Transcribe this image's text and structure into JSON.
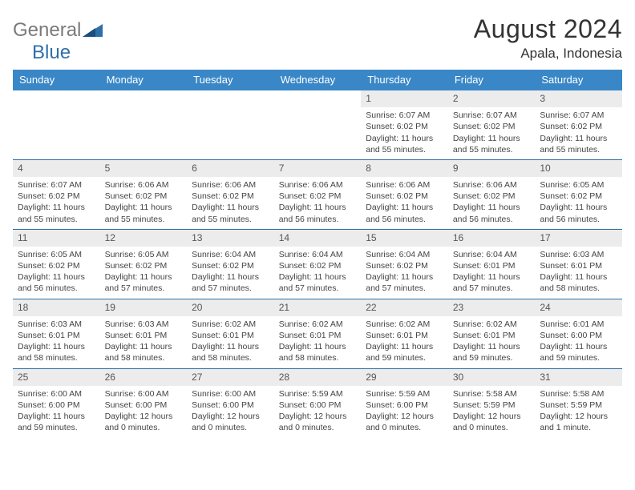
{
  "logo": {
    "text1": "General",
    "text2": "Blue"
  },
  "title": "August 2024",
  "location": "Apala, Indonesia",
  "colors": {
    "header_bg": "#3a87c7",
    "row_border": "#2f6fa8",
    "daynum_bg": "#ececec",
    "logo_blue": "#2f6fa8"
  },
  "day_headers": [
    "Sunday",
    "Monday",
    "Tuesday",
    "Wednesday",
    "Thursday",
    "Friday",
    "Saturday"
  ],
  "weeks": [
    [
      {
        "n": "",
        "lines": []
      },
      {
        "n": "",
        "lines": []
      },
      {
        "n": "",
        "lines": []
      },
      {
        "n": "",
        "lines": []
      },
      {
        "n": "1",
        "lines": [
          "Sunrise: 6:07 AM",
          "Sunset: 6:02 PM",
          "Daylight: 11 hours and 55 minutes."
        ]
      },
      {
        "n": "2",
        "lines": [
          "Sunrise: 6:07 AM",
          "Sunset: 6:02 PM",
          "Daylight: 11 hours and 55 minutes."
        ]
      },
      {
        "n": "3",
        "lines": [
          "Sunrise: 6:07 AM",
          "Sunset: 6:02 PM",
          "Daylight: 11 hours and 55 minutes."
        ]
      }
    ],
    [
      {
        "n": "4",
        "lines": [
          "Sunrise: 6:07 AM",
          "Sunset: 6:02 PM",
          "Daylight: 11 hours and 55 minutes."
        ]
      },
      {
        "n": "5",
        "lines": [
          "Sunrise: 6:06 AM",
          "Sunset: 6:02 PM",
          "Daylight: 11 hours and 55 minutes."
        ]
      },
      {
        "n": "6",
        "lines": [
          "Sunrise: 6:06 AM",
          "Sunset: 6:02 PM",
          "Daylight: 11 hours and 55 minutes."
        ]
      },
      {
        "n": "7",
        "lines": [
          "Sunrise: 6:06 AM",
          "Sunset: 6:02 PM",
          "Daylight: 11 hours and 56 minutes."
        ]
      },
      {
        "n": "8",
        "lines": [
          "Sunrise: 6:06 AM",
          "Sunset: 6:02 PM",
          "Daylight: 11 hours and 56 minutes."
        ]
      },
      {
        "n": "9",
        "lines": [
          "Sunrise: 6:06 AM",
          "Sunset: 6:02 PM",
          "Daylight: 11 hours and 56 minutes."
        ]
      },
      {
        "n": "10",
        "lines": [
          "Sunrise: 6:05 AM",
          "Sunset: 6:02 PM",
          "Daylight: 11 hours and 56 minutes."
        ]
      }
    ],
    [
      {
        "n": "11",
        "lines": [
          "Sunrise: 6:05 AM",
          "Sunset: 6:02 PM",
          "Daylight: 11 hours and 56 minutes."
        ]
      },
      {
        "n": "12",
        "lines": [
          "Sunrise: 6:05 AM",
          "Sunset: 6:02 PM",
          "Daylight: 11 hours and 57 minutes."
        ]
      },
      {
        "n": "13",
        "lines": [
          "Sunrise: 6:04 AM",
          "Sunset: 6:02 PM",
          "Daylight: 11 hours and 57 minutes."
        ]
      },
      {
        "n": "14",
        "lines": [
          "Sunrise: 6:04 AM",
          "Sunset: 6:02 PM",
          "Daylight: 11 hours and 57 minutes."
        ]
      },
      {
        "n": "15",
        "lines": [
          "Sunrise: 6:04 AM",
          "Sunset: 6:02 PM",
          "Daylight: 11 hours and 57 minutes."
        ]
      },
      {
        "n": "16",
        "lines": [
          "Sunrise: 6:04 AM",
          "Sunset: 6:01 PM",
          "Daylight: 11 hours and 57 minutes."
        ]
      },
      {
        "n": "17",
        "lines": [
          "Sunrise: 6:03 AM",
          "Sunset: 6:01 PM",
          "Daylight: 11 hours and 58 minutes."
        ]
      }
    ],
    [
      {
        "n": "18",
        "lines": [
          "Sunrise: 6:03 AM",
          "Sunset: 6:01 PM",
          "Daylight: 11 hours and 58 minutes."
        ]
      },
      {
        "n": "19",
        "lines": [
          "Sunrise: 6:03 AM",
          "Sunset: 6:01 PM",
          "Daylight: 11 hours and 58 minutes."
        ]
      },
      {
        "n": "20",
        "lines": [
          "Sunrise: 6:02 AM",
          "Sunset: 6:01 PM",
          "Daylight: 11 hours and 58 minutes."
        ]
      },
      {
        "n": "21",
        "lines": [
          "Sunrise: 6:02 AM",
          "Sunset: 6:01 PM",
          "Daylight: 11 hours and 58 minutes."
        ]
      },
      {
        "n": "22",
        "lines": [
          "Sunrise: 6:02 AM",
          "Sunset: 6:01 PM",
          "Daylight: 11 hours and 59 minutes."
        ]
      },
      {
        "n": "23",
        "lines": [
          "Sunrise: 6:02 AM",
          "Sunset: 6:01 PM",
          "Daylight: 11 hours and 59 minutes."
        ]
      },
      {
        "n": "24",
        "lines": [
          "Sunrise: 6:01 AM",
          "Sunset: 6:00 PM",
          "Daylight: 11 hours and 59 minutes."
        ]
      }
    ],
    [
      {
        "n": "25",
        "lines": [
          "Sunrise: 6:00 AM",
          "Sunset: 6:00 PM",
          "Daylight: 11 hours and 59 minutes."
        ]
      },
      {
        "n": "26",
        "lines": [
          "Sunrise: 6:00 AM",
          "Sunset: 6:00 PM",
          "Daylight: 12 hours and 0 minutes."
        ]
      },
      {
        "n": "27",
        "lines": [
          "Sunrise: 6:00 AM",
          "Sunset: 6:00 PM",
          "Daylight: 12 hours and 0 minutes."
        ]
      },
      {
        "n": "28",
        "lines": [
          "Sunrise: 5:59 AM",
          "Sunset: 6:00 PM",
          "Daylight: 12 hours and 0 minutes."
        ]
      },
      {
        "n": "29",
        "lines": [
          "Sunrise: 5:59 AM",
          "Sunset: 6:00 PM",
          "Daylight: 12 hours and 0 minutes."
        ]
      },
      {
        "n": "30",
        "lines": [
          "Sunrise: 5:58 AM",
          "Sunset: 5:59 PM",
          "Daylight: 12 hours and 0 minutes."
        ]
      },
      {
        "n": "31",
        "lines": [
          "Sunrise: 5:58 AM",
          "Sunset: 5:59 PM",
          "Daylight: 12 hours and 1 minute."
        ]
      }
    ]
  ]
}
